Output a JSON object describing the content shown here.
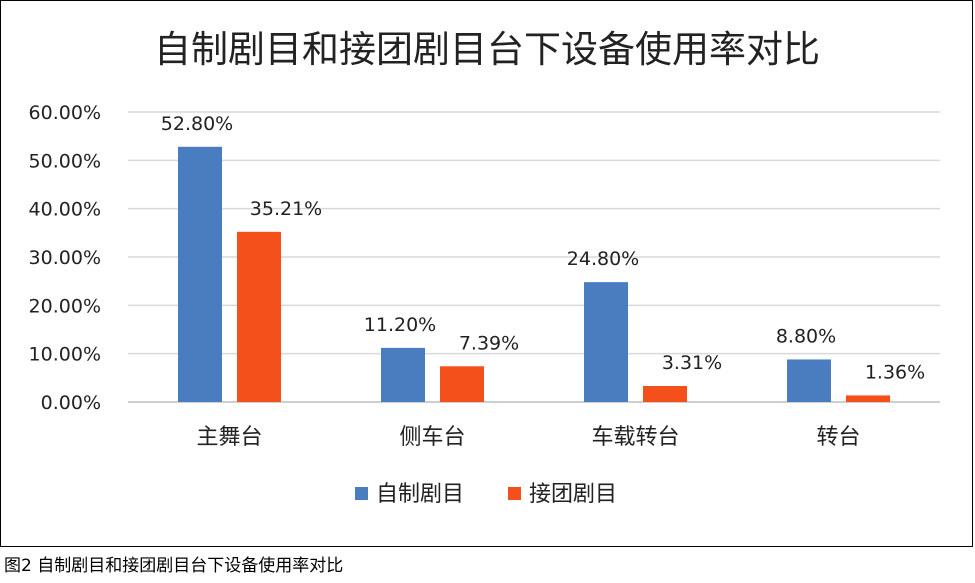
{
  "chart_data": {
    "type": "bar",
    "title": "自制剧目和接团剧目台下设备使用率对比",
    "categories": [
      "主舞台",
      "侧车台",
      "车载转台",
      "转台"
    ],
    "series": [
      {
        "name": "自制剧目",
        "values": [
          52.8,
          11.2,
          24.8,
          8.8
        ],
        "labels": [
          "52.80%",
          "11.20%",
          "24.80%",
          "8.80%"
        ]
      },
      {
        "name": "接团剧目",
        "values": [
          35.21,
          7.39,
          3.31,
          1.36
        ],
        "labels": [
          "35.21%",
          "7.39%",
          "3.31%",
          "1.36%"
        ]
      }
    ],
    "ylim": [
      0,
      60
    ],
    "yticks": [
      "0.00%",
      "10.00%",
      "20.00%",
      "30.00%",
      "40.00%",
      "50.00%",
      "60.00%"
    ],
    "grid": true,
    "legend": "bottom",
    "colors": [
      "#4a7cc0",
      "#f4501c"
    ]
  },
  "caption": "图2 自制剧目和接团剧目台下设备使用率对比"
}
